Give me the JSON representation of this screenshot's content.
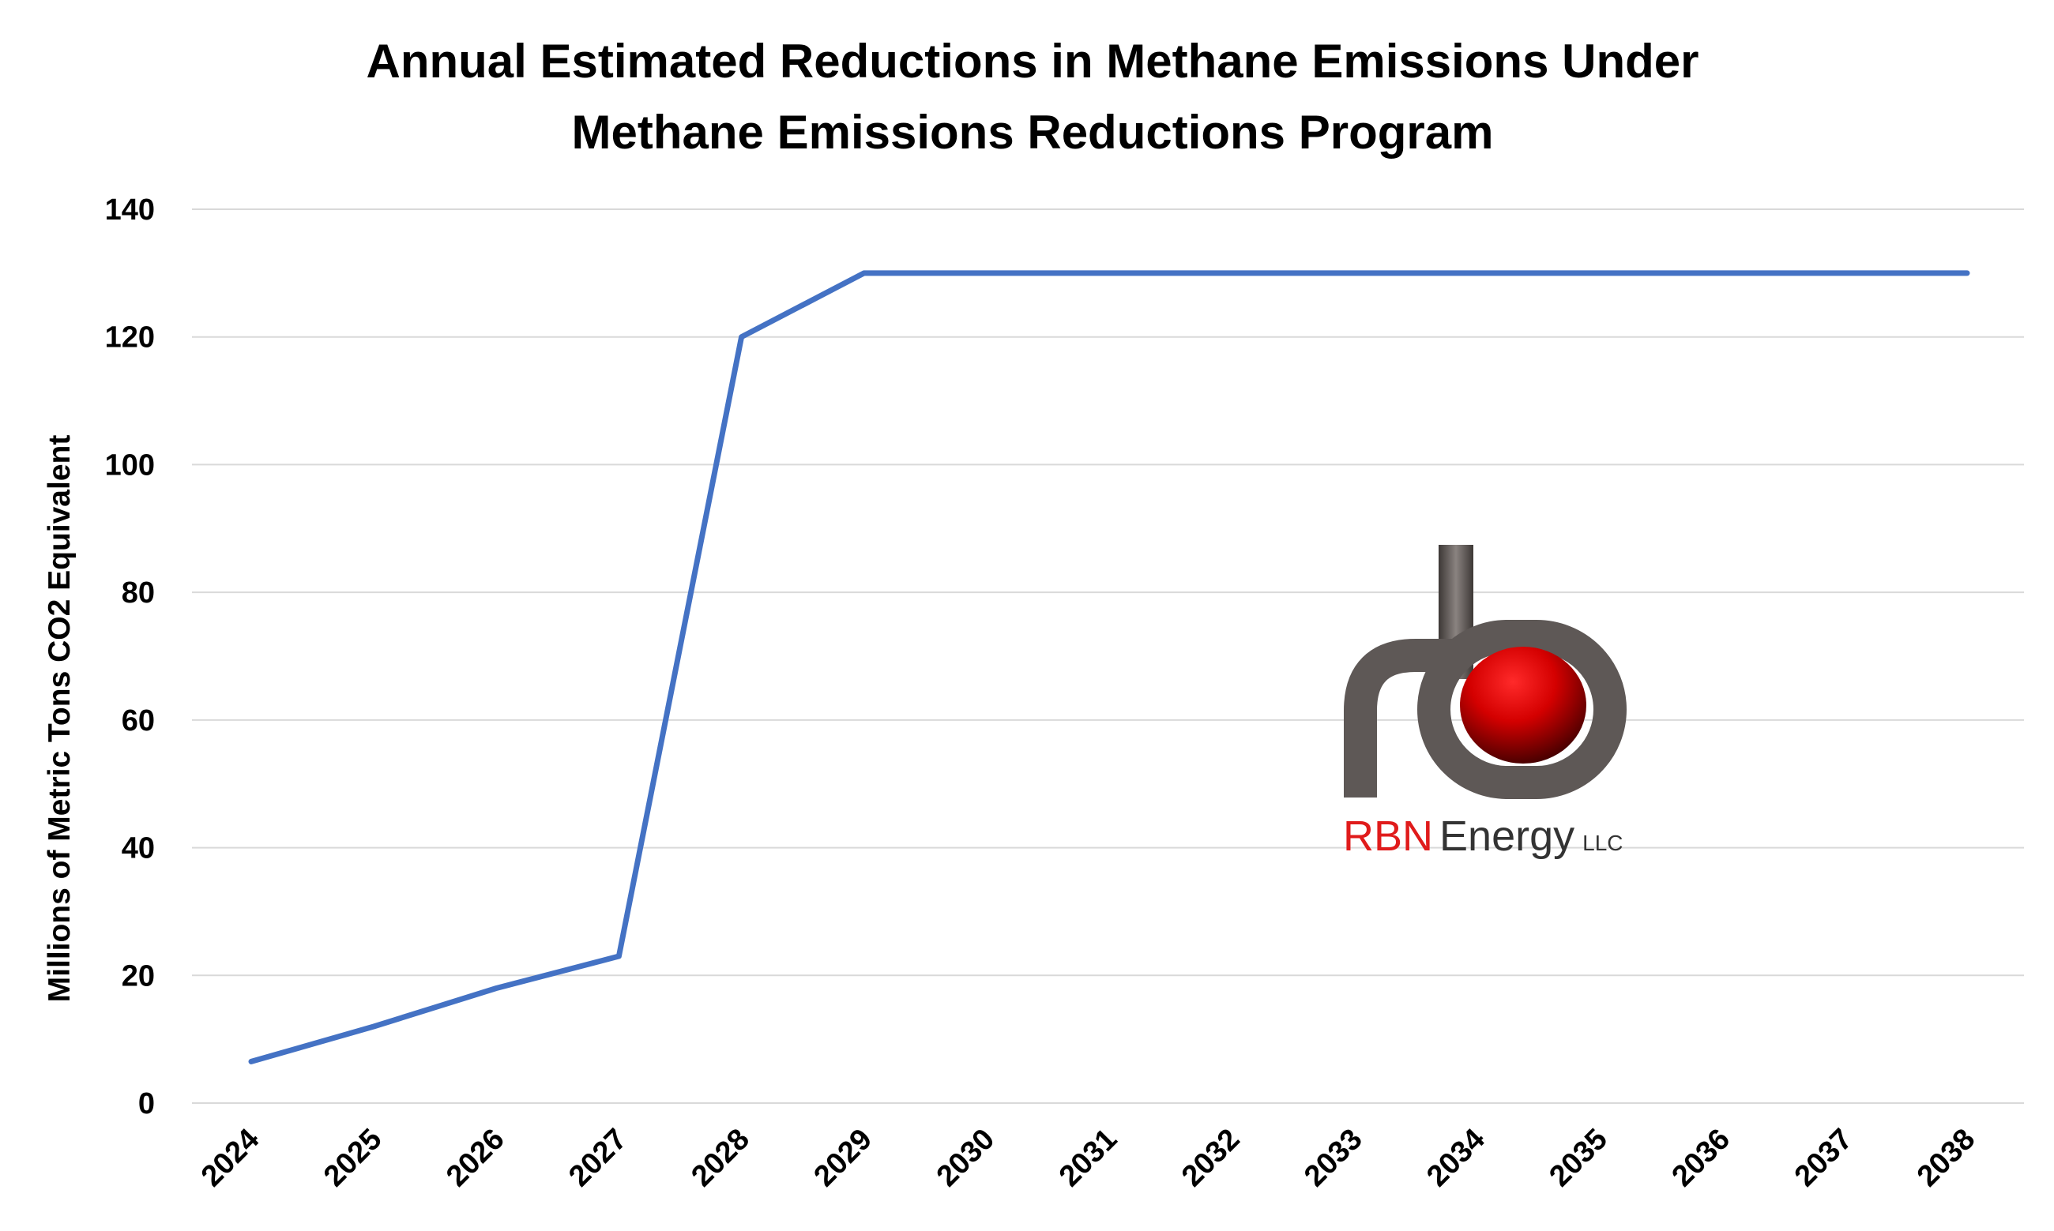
{
  "chart_data": {
    "type": "line",
    "title": [
      "Annual Estimated Reductions in Methane Emissions Under",
      "Methane Emissions Reductions Program"
    ],
    "xlabel": "",
    "ylabel": "Millions of Metric Tons CO2 Equivalent",
    "ylim": [
      0,
      140
    ],
    "yticks": [
      0,
      20,
      40,
      60,
      80,
      100,
      120,
      140
    ],
    "categories": [
      "2024",
      "2025",
      "2026",
      "2027",
      "2028",
      "2029",
      "2030",
      "2031",
      "2032",
      "2033",
      "2034",
      "2035",
      "2036",
      "2037",
      "2038"
    ],
    "series": [
      {
        "values": [
          6.5,
          12,
          18,
          23,
          120,
          130,
          130,
          130,
          130,
          130,
          130,
          130,
          130,
          130,
          130
        ]
      }
    ],
    "grid": true,
    "legend": "none",
    "colors": {
      "line": "#4472C4",
      "grid": "#d9d9d9"
    }
  },
  "logo": {
    "text_red": "RBN",
    "text_dark": "Energy",
    "text_small": "LLC",
    "colors": {
      "red": "#e01b1b",
      "dark": "#333333",
      "pipe": "#6b6461"
    }
  }
}
